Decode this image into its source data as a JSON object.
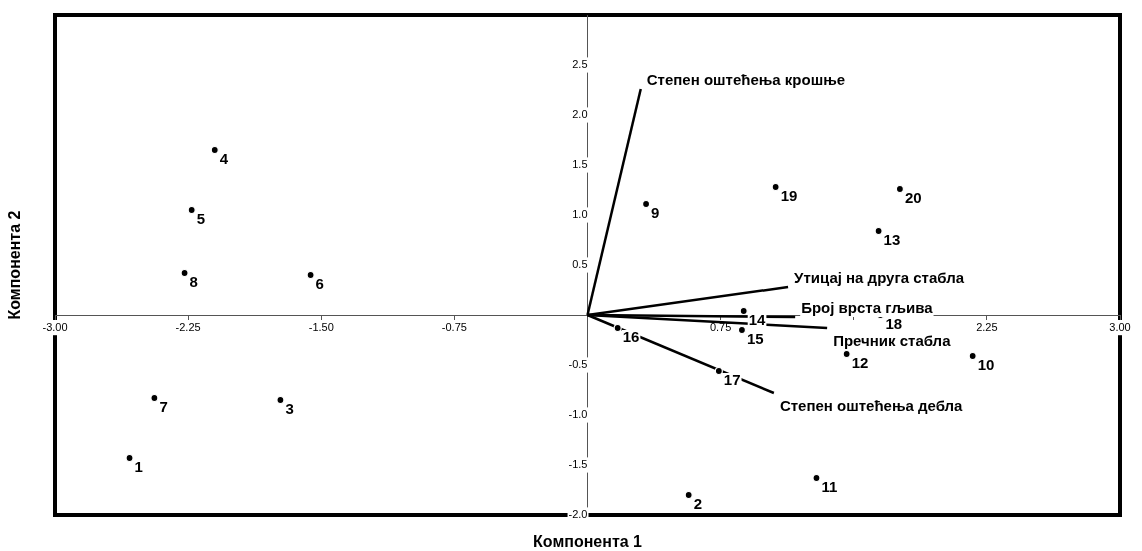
{
  "chart_data": {
    "type": "scatter",
    "xlabel": "Компонента 1",
    "ylabel": "Компонента 2",
    "xlim": [
      -3,
      3
    ],
    "ylim": [
      -2,
      3
    ],
    "xticks": [
      {
        "value": -3,
        "label": "-3.00"
      },
      {
        "value": -2.25,
        "label": "-2.25"
      },
      {
        "value": -1.5,
        "label": "-1.50"
      },
      {
        "value": -0.75,
        "label": "-0.75"
      },
      {
        "value": 0,
        "label": null
      },
      {
        "value": 0.75,
        "label": "0.75"
      },
      {
        "value": 1.5,
        "label": null
      },
      {
        "value": 2.25,
        "label": "2.25"
      },
      {
        "value": 3,
        "label": "3.00"
      }
    ],
    "yticks": [
      {
        "value": -2,
        "label": "-2.0"
      },
      {
        "value": -1.5,
        "label": "-1.5"
      },
      {
        "value": -1,
        "label": "-1.0"
      },
      {
        "value": -0.5,
        "label": "-0.5"
      },
      {
        "value": 0,
        "label": null
      },
      {
        "value": 0.5,
        "label": "0.5"
      },
      {
        "value": 1,
        "label": "1.0"
      },
      {
        "value": 1.5,
        "label": "1.5"
      },
      {
        "value": 2,
        "label": "2.0"
      },
      {
        "value": 2.5,
        "label": "2.5"
      }
    ],
    "grid": false,
    "legend": false,
    "marker": "circle",
    "series": [
      {
        "type": "scatter",
        "color": "#000000",
        "x": [
          -2.58,
          0.57,
          -1.73,
          -2.1,
          -2.23,
          -1.56,
          -2.44,
          -2.27,
          0.33,
          2.17,
          1.29,
          1.46,
          1.64,
          0.88,
          0.87,
          0.17,
          0.74,
          1.65,
          1.06,
          1.76
        ],
        "values": [
          -1.43,
          -1.8,
          -0.85,
          1.65,
          1.05,
          0.4,
          -0.83,
          0.42,
          1.11,
          -0.41,
          -1.63,
          -0.39,
          0.84,
          0.04,
          -0.15,
          -0.13,
          -0.56,
          0.0,
          1.28,
          1.26
        ]
      },
      {
        "type": "line",
        "name": "Степен оштећења крошње",
        "color": "#000000",
        "marker": "none",
        "x": [
          0,
          0.3
        ],
        "values": [
          0,
          2.26
        ]
      },
      {
        "type": "line",
        "name": "Утицај на друга стабла",
        "color": "#000000",
        "marker": "none",
        "x": [
          0,
          1.13
        ],
        "values": [
          0,
          0.28
        ]
      },
      {
        "type": "line",
        "name": "Број врста гљива",
        "color": "#000000",
        "marker": "none",
        "x": [
          0,
          1.17
        ],
        "values": [
          0,
          -0.02
        ]
      },
      {
        "type": "line",
        "name": "Пречник стабла",
        "color": "#000000",
        "marker": "none",
        "x": [
          0,
          1.35
        ],
        "values": [
          0,
          -0.13
        ]
      },
      {
        "type": "line",
        "name": "Степен оштећења дебла",
        "color": "#000000",
        "marker": "none",
        "x": [
          0,
          1.05
        ],
        "values": [
          0,
          -0.78
        ]
      }
    ],
    "annotations": [
      {
        "text": "1",
        "x": -2.58,
        "y": -1.43
      },
      {
        "text": "2",
        "x": 0.57,
        "y": -1.8
      },
      {
        "text": "3",
        "x": -1.73,
        "y": -0.85
      },
      {
        "text": "4",
        "x": -2.1,
        "y": 1.65
      },
      {
        "text": "5",
        "x": -2.23,
        "y": 1.05
      },
      {
        "text": "6",
        "x": -1.56,
        "y": 0.4
      },
      {
        "text": "7",
        "x": -2.44,
        "y": -0.83
      },
      {
        "text": "8",
        "x": -2.27,
        "y": 0.42
      },
      {
        "text": "9",
        "x": 0.33,
        "y": 1.11
      },
      {
        "text": "10",
        "x": 2.17,
        "y": -0.41
      },
      {
        "text": "11",
        "x": 1.29,
        "y": -1.63
      },
      {
        "text": "12",
        "x": 1.46,
        "y": -0.39
      },
      {
        "text": "13",
        "x": 1.64,
        "y": 0.84
      },
      {
        "text": "14",
        "x": 0.88,
        "y": 0.04
      },
      {
        "text": "15",
        "x": 0.87,
        "y": -0.15
      },
      {
        "text": "16",
        "x": 0.17,
        "y": -0.13
      },
      {
        "text": "17",
        "x": 0.74,
        "y": -0.56
      },
      {
        "text": "18",
        "x": 1.65,
        "y": 0.0
      },
      {
        "text": "19",
        "x": 1.06,
        "y": 1.28
      },
      {
        "text": "20",
        "x": 1.76,
        "y": 1.26
      }
    ]
  }
}
